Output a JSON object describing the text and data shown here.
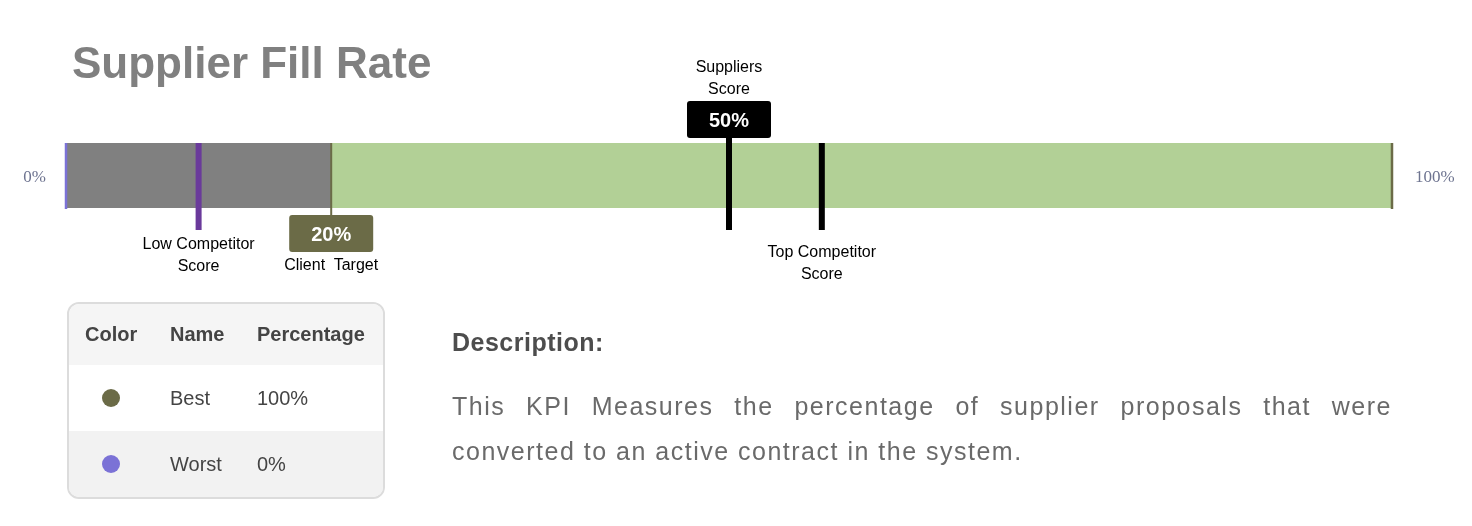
{
  "chart_data": [
    {
      "type": "bar",
      "orientation": "horizontal",
      "stacked": true,
      "title": "Supplier Fill Rate",
      "categories": [
        null
      ],
      "series": [
        {
          "color": "#808080",
          "values": [
            20
          ]
        },
        {
          "color": "#b2d096",
          "values": [
            80
          ]
        }
      ],
      "xlim": [
        0,
        100
      ],
      "ref_lines": [
        {
          "axis": "x",
          "value": 0,
          "label": "0%",
          "color": "#7b72d6"
        },
        {
          "axis": "x",
          "value": 10,
          "label": "Low Competitor Score",
          "color": "#6a3a9b"
        },
        {
          "axis": "x",
          "value": 20,
          "label": "Client  Target",
          "color": "#6b6b47"
        },
        {
          "axis": "x",
          "value": 50,
          "label": "Suppliers Score",
          "color": "#000000"
        },
        {
          "axis": "x",
          "value": 57,
          "label": "Top Competitor Score",
          "color": "#000000"
        },
        {
          "axis": "x",
          "value": 100,
          "label": "100%",
          "color": "#6b6b47"
        }
      ],
      "annotations": [
        "20%",
        "50%"
      ]
    },
    {
      "type": "other",
      "categories": [
        "Best",
        "Worst"
      ],
      "values": [
        100,
        0
      ],
      "value_labels": [
        "100%",
        "0%"
      ],
      "annotations": [
        "Color",
        "Name",
        "Percentage"
      ]
    },
    {
      "type": "other",
      "title": "Description:",
      "annotations": [
        "This KPI Measures the percentage of supplier proposals that were converted to an active contract in the system."
      ]
    }
  ]
}
